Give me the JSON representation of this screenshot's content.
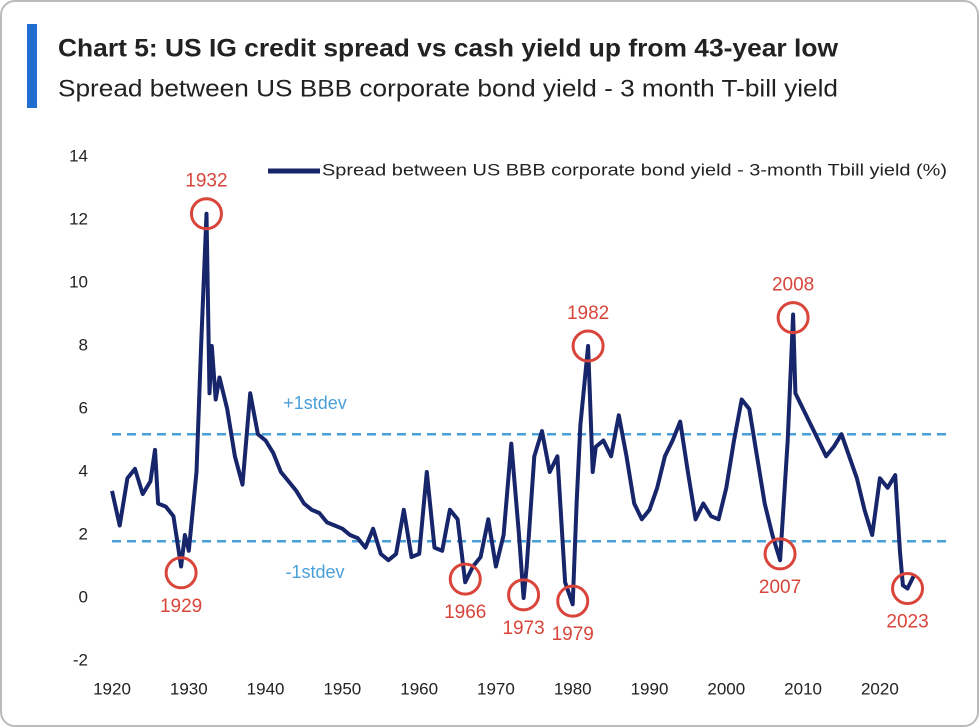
{
  "chart_data": {
    "type": "line",
    "title": "Chart 5: US IG credit spread vs cash yield up from 43-year low",
    "subtitle": "Spread between US BBB corporate bond yield - 3 month T-bill yield",
    "legend": "upper right",
    "series": [
      {
        "name": "Spread between US BBB corporate bond yield - 3-month Tbill yield (%)",
        "color": "#17256b",
        "x": [
          1920,
          1921,
          1922,
          1923,
          1924,
          1925,
          1925.6,
          1926,
          1927,
          1928,
          1929,
          1929.5,
          1930,
          1931,
          1931.6,
          1932.3,
          1932.7,
          1933,
          1933.5,
          1934,
          1935,
          1936,
          1937,
          1938,
          1939,
          1940,
          1941,
          1942,
          1943,
          1944,
          1945,
          1946,
          1947,
          1948,
          1949,
          1950,
          1951,
          1952,
          1953,
          1954,
          1955,
          1956,
          1957,
          1958,
          1959,
          1960,
          1961,
          1962,
          1963,
          1964,
          1965,
          1966,
          1967,
          1968,
          1969,
          1970,
          1971,
          1972,
          1973,
          1973.6,
          1974,
          1975,
          1976,
          1977,
          1978,
          1979,
          1980,
          1980.5,
          1981,
          1982,
          1982.6,
          1983,
          1984,
          1985,
          1986,
          1987,
          1988,
          1989,
          1990,
          1991,
          1992,
          1993,
          1994,
          1995,
          1996,
          1997,
          1998,
          1999,
          2000,
          2001,
          2002,
          2003,
          2004,
          2005,
          2006,
          2007,
          2008,
          2008.7,
          2009,
          2010,
          2011,
          2012,
          2013,
          2014,
          2015,
          2016,
          2017,
          2018,
          2019,
          2020,
          2021,
          2022,
          2022.6,
          2023,
          2023.6,
          2024.4
        ],
        "values": [
          3.4,
          2.3,
          3.8,
          4.1,
          3.3,
          3.7,
          4.7,
          3.0,
          2.9,
          2.6,
          1.0,
          2.0,
          1.5,
          4.0,
          8.0,
          12.2,
          6.5,
          8.0,
          6.3,
          7.0,
          6.0,
          4.5,
          3.6,
          6.5,
          5.2,
          5.0,
          4.6,
          4.0,
          3.7,
          3.4,
          3.0,
          2.8,
          2.7,
          2.4,
          2.3,
          2.2,
          2.0,
          1.9,
          1.6,
          2.2,
          1.4,
          1.2,
          1.4,
          2.8,
          1.3,
          1.4,
          4.0,
          1.6,
          1.5,
          2.8,
          2.5,
          0.5,
          1.0,
          1.3,
          2.5,
          1.0,
          2.0,
          4.9,
          2.0,
          0.0,
          1.0,
          4.5,
          5.3,
          4.0,
          4.5,
          0.5,
          -0.2,
          3.0,
          5.5,
          8.0,
          4.0,
          4.8,
          5.0,
          4.5,
          5.8,
          4.5,
          3.0,
          2.5,
          2.8,
          3.5,
          4.5,
          5.0,
          5.6,
          4.0,
          2.5,
          3.0,
          2.6,
          2.5,
          3.5,
          5.0,
          6.3,
          6.0,
          4.5,
          3.0,
          2.0,
          1.2,
          5.0,
          9.0,
          6.5,
          6.0,
          5.5,
          5.0,
          4.5,
          4.8,
          5.2,
          4.5,
          3.8,
          2.8,
          2.0,
          3.8,
          3.5,
          3.9,
          1.5,
          0.4,
          0.3,
          0.7
        ]
      }
    ],
    "reference_lines": [
      {
        "label": "+1stdev",
        "value": 5.2,
        "position": "above"
      },
      {
        "label": "-1stdev",
        "value": 1.8,
        "position": "below"
      }
    ],
    "annotations": [
      {
        "label": "1932",
        "x": 1932.3,
        "y": 12.2,
        "position": "above"
      },
      {
        "label": "1929",
        "x": 1929,
        "y": 0.8,
        "position": "below"
      },
      {
        "label": "1966",
        "x": 1966,
        "y": 0.6,
        "position": "below"
      },
      {
        "label": "1973",
        "x": 1973.6,
        "y": 0.1,
        "position": "below"
      },
      {
        "label": "1979",
        "x": 1980,
        "y": -0.1,
        "position": "below"
      },
      {
        "label": "1982",
        "x": 1982,
        "y": 8.0,
        "position": "above"
      },
      {
        "label": "2008",
        "x": 2008.7,
        "y": 8.9,
        "position": "above"
      },
      {
        "label": "2007",
        "x": 2007,
        "y": 1.4,
        "position": "below"
      },
      {
        "label": "2023",
        "x": 2023.6,
        "y": 0.3,
        "position": "below"
      }
    ],
    "xlim": [
      1920,
      2029
    ],
    "xticks": [
      1920,
      1930,
      1940,
      1950,
      1960,
      1970,
      1980,
      1990,
      2000,
      2010,
      2020
    ],
    "ylim": [
      -2,
      14
    ],
    "yticks": [
      -2,
      0,
      2,
      4,
      6,
      8,
      10,
      12,
      14
    ],
    "grid": false
  }
}
